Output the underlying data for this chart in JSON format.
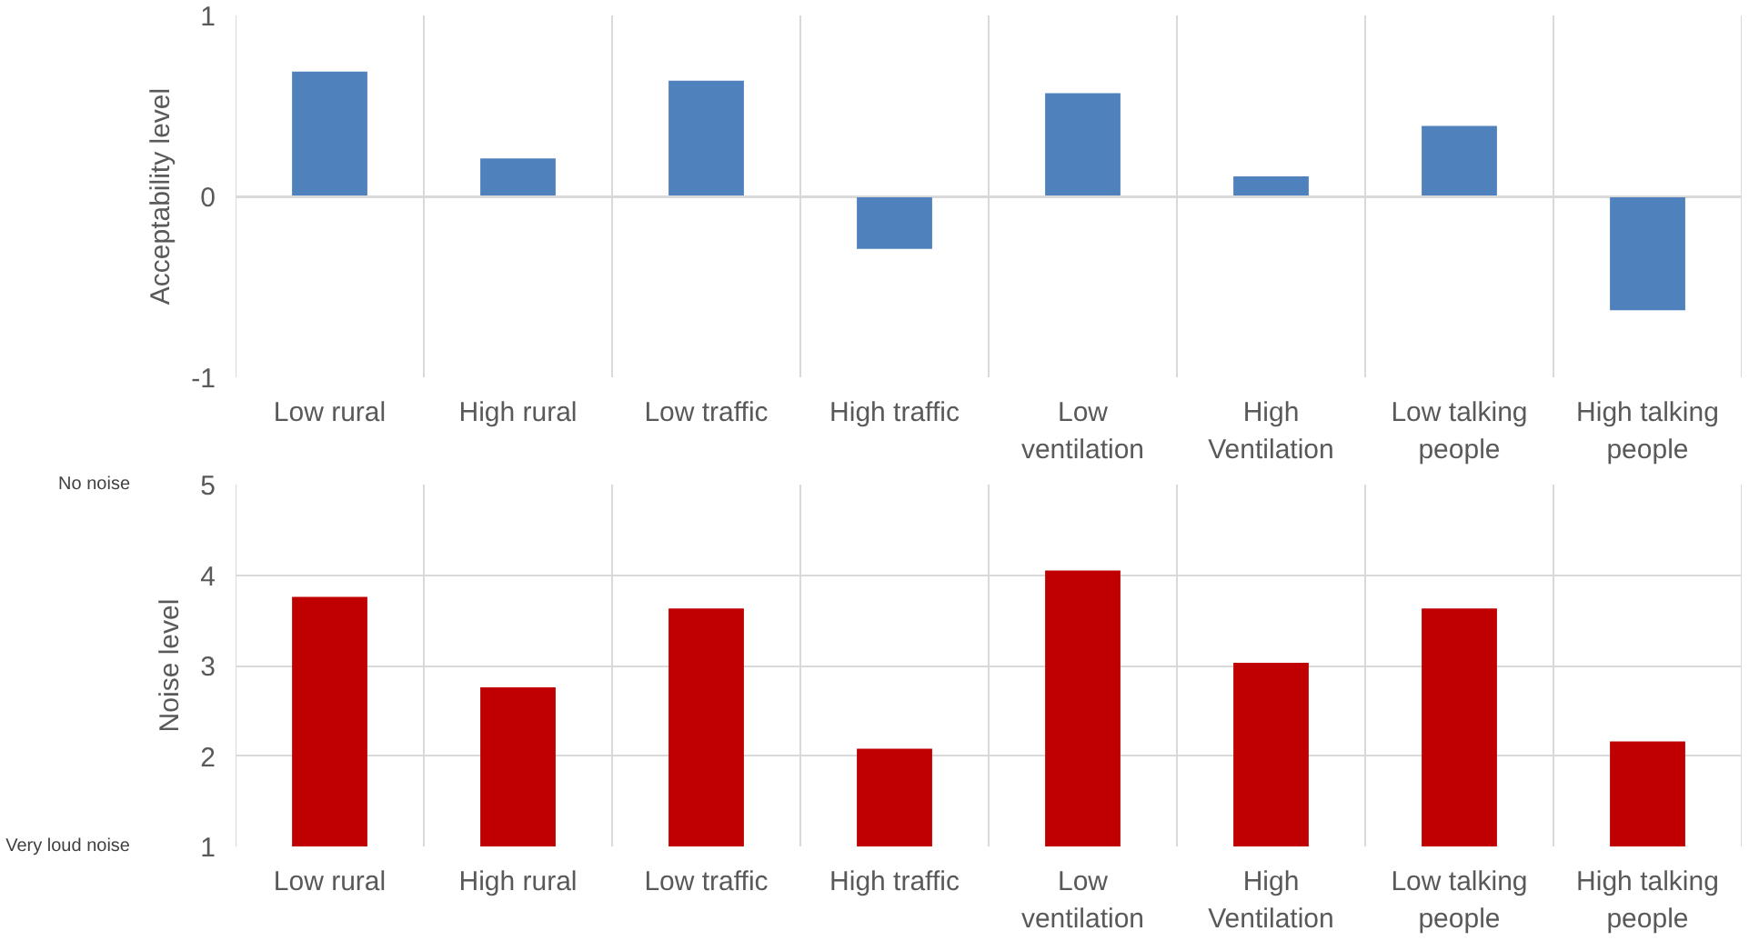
{
  "chart_data": [
    {
      "type": "bar",
      "ylabel": "Acceptability level",
      "categories": [
        "Low rural",
        "High rural",
        "Low traffic",
        "High traffic",
        "Low ventilation",
        "High Ventilation",
        "Low talking people",
        "High talking people"
      ],
      "series": [
        {
          "color": "#4f81bd",
          "values": [
            0.69,
            0.21,
            0.64,
            -0.29,
            0.57,
            0.11,
            0.39,
            -0.63
          ]
        }
      ],
      "ylim": [
        -1,
        1
      ],
      "yticks": [
        -1,
        0,
        1
      ],
      "grid": true
    },
    {
      "type": "bar",
      "ylabel": "Noise level",
      "categories": [
        "Low rural",
        "High rural",
        "Low traffic",
        "High traffic",
        "Low ventilation",
        "High Ventilation",
        "Low talking people",
        "High talking people"
      ],
      "series": [
        {
          "color": "#c00000",
          "values": [
            3.76,
            2.76,
            3.63,
            2.08,
            4.05,
            3.03,
            3.63,
            2.16
          ]
        }
      ],
      "ylim": [
        1,
        5
      ],
      "yticks": [
        1,
        2,
        3,
        4,
        5
      ],
      "grid": true,
      "annotations": [
        "No noise",
        "Very loud noise"
      ]
    }
  ]
}
